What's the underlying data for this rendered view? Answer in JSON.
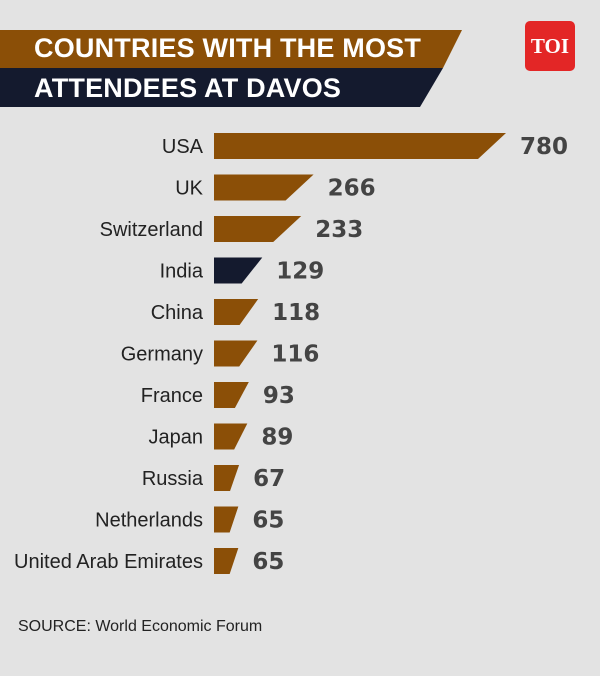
{
  "header": {
    "title_line1": "COUNTRIES WITH THE MOST",
    "title_line2": "ATTENDEES AT DAVOS",
    "logo_text": "TOI"
  },
  "colors": {
    "bar": "#8b4f07",
    "highlight": "#141a2e",
    "banner_top": "#8b4f07",
    "banner_bottom": "#141a2e",
    "logo": "#e32626"
  },
  "chart_data": {
    "type": "bar",
    "orientation": "horizontal",
    "title": "COUNTRIES WITH THE MOST ATTENDEES AT DAVOS",
    "categories": [
      "USA",
      "UK",
      "Switzerland",
      "India",
      "China",
      "Germany",
      "France",
      "Japan",
      "Russia",
      "Netherlands",
      "United Arab Emirates"
    ],
    "values": [
      780,
      266,
      233,
      129,
      118,
      116,
      93,
      89,
      67,
      65,
      65
    ],
    "highlight": "India",
    "xlim": [
      0,
      780
    ]
  },
  "footer": {
    "source": "SOURCE: World Economic Forum"
  }
}
